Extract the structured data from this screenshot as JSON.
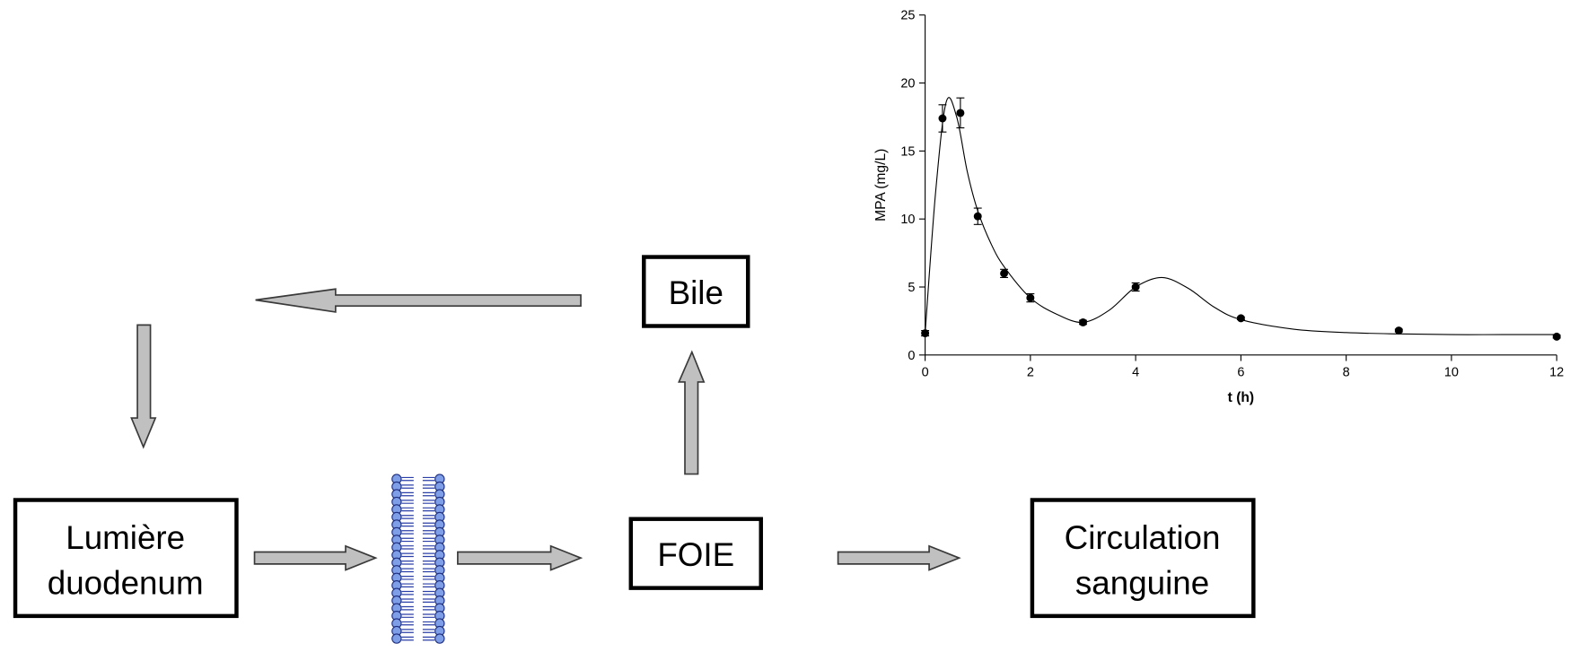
{
  "nodes": [
    {
      "label": [
        "Bile"
      ]
    },
    {
      "label": [
        "Lumière",
        "duodenum"
      ]
    },
    {
      "label": [
        "FOIE"
      ]
    },
    {
      "label": [
        "Circulation",
        "sanguine"
      ]
    }
  ],
  "chart_data": {
    "type": "scatter",
    "xlabel": "t (h)",
    "ylabel": "MPA (mg/L)",
    "xlim": [
      0,
      12
    ],
    "xticks": [
      0,
      2,
      4,
      6,
      8,
      10,
      12
    ],
    "ylim": [
      0,
      25
    ],
    "yticks": [
      0,
      5,
      10,
      15,
      20,
      25
    ],
    "color": "#000000",
    "points": {
      "x": [
        0,
        0.33,
        0.67,
        1,
        1.5,
        2,
        3,
        4,
        6,
        9,
        12
      ],
      "values": [
        1.6,
        17.4,
        17.8,
        10.2,
        6.0,
        4.2,
        2.4,
        5.0,
        2.7,
        1.8,
        1.35
      ],
      "errors": [
        0.2,
        1.0,
        1.1,
        0.6,
        0.3,
        0.3,
        0.15,
        0.3,
        0.1,
        0.1,
        0.1
      ]
    },
    "fit": {
      "x": [
        0,
        0.2,
        0.4,
        0.6,
        0.8,
        1,
        1.25,
        1.5,
        2,
        2.5,
        3,
        3.5,
        4,
        4.5,
        5,
        5.5,
        6,
        7,
        8,
        9,
        10,
        11,
        12
      ],
      "values": [
        1.6,
        12,
        18.6,
        17.5,
        13.5,
        10.6,
        8.2,
        6.5,
        4.2,
        3.0,
        2.4,
        3.3,
        5.0,
        5.7,
        4.9,
        3.5,
        2.6,
        1.9,
        1.65,
        1.55,
        1.5,
        1.5,
        1.5
      ]
    }
  }
}
